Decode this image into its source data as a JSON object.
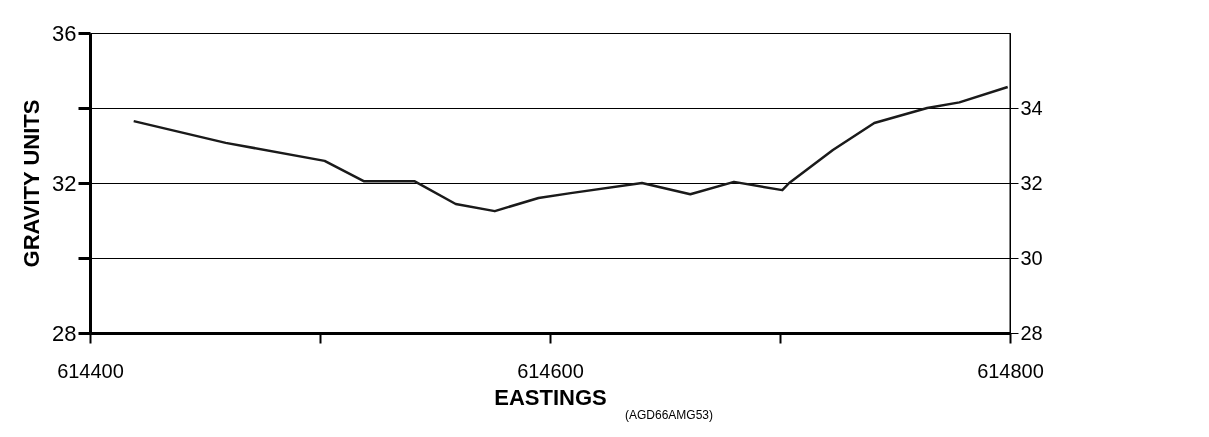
{
  "chart_data": {
    "type": "line",
    "xlabel": "EASTINGS",
    "ylabel": "GRAVITY UNITS",
    "annotations": [
      "(AGD66AMG53)"
    ],
    "x": [
      614419,
      614459,
      614502,
      614519,
      614541,
      614559,
      614576,
      614595,
      614609,
      614640,
      614661,
      614680,
      614701,
      614704,
      614723,
      614741,
      614764,
      614778,
      614799
    ],
    "series": [
      {
        "color": "#1a1a1a",
        "values": [
          33.65,
          33.07,
          32.59,
          32.05,
          32.05,
          31.44,
          31.25,
          31.6,
          31.73,
          32.0,
          31.7,
          32.03,
          31.81,
          32.0,
          32.88,
          33.6,
          34.0,
          34.15,
          34.56
        ]
      }
    ],
    "xlim": [
      614400,
      614800
    ],
    "xticks": [
      614400,
      {
        "value": 614500,
        "label": null
      },
      614600,
      {
        "value": 614700,
        "label": null
      },
      614800
    ],
    "ylim": [
      28,
      36
    ],
    "yticks": [
      28,
      {
        "value": 30,
        "label": null
      },
      32,
      {
        "value": 34,
        "label": null
      },
      36
    ],
    "y2lim": [
      28,
      36
    ],
    "y2ticks": [
      28,
      30,
      32,
      34
    ],
    "grid": "y",
    "marker": "none",
    "line_style": "solid"
  }
}
